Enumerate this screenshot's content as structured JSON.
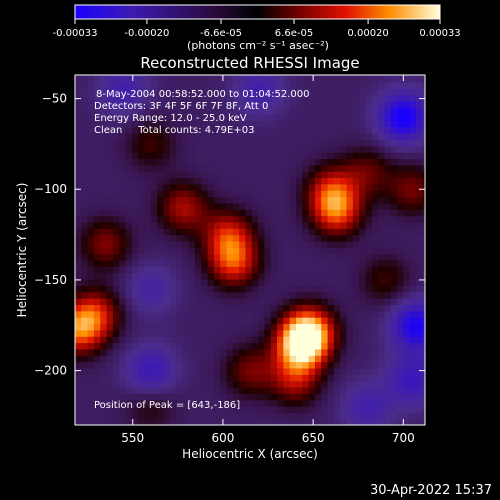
{
  "chart_data": {
    "type": "heatmap",
    "title": "Reconstructed RHESSI Image",
    "xlabel": "Heliocentric X (arcsec)",
    "ylabel": "Heliocentric Y (arcsec)",
    "xlim": [
      518,
      712
    ],
    "ylim": [
      -230,
      -37
    ],
    "x_ticks": [
      550,
      600,
      650,
      700
    ],
    "y_ticks": [
      -200,
      -150,
      -100,
      -50
    ],
    "colorbar": {
      "ticks": [
        "-0.00033",
        "-0.00020",
        "-6.6e-05",
        "6.6e-05",
        "0.00020",
        "0.00033"
      ],
      "tick_values": [
        -0.00033,
        -0.0002,
        -6.6e-05,
        6.6e-05,
        0.0002,
        0.00033
      ],
      "min": -0.00033,
      "max": 0.00033,
      "unit_label": "(photons cm⁻² s⁻¹ asec⁻²)"
    },
    "annotations": {
      "time": "8-May-2004 00:58:52.000 to 01:04:52.000",
      "detectors": "Detectors: 3F 4F 5F 6F 7F 8F, Att 0",
      "energy": "Energy Range: 12.0 - 25.0 keV",
      "clean": "Clean     Total counts: 4.79E+03",
      "peak": "Position of Peak = [643,-186]"
    },
    "sources": [
      {
        "x": 643,
        "y": -186,
        "value": 0.00033
      },
      {
        "x": 648,
        "y": -178,
        "value": 0.0003
      },
      {
        "x": 520,
        "y": -177,
        "value": 0.00026
      },
      {
        "x": 606,
        "y": -140,
        "value": 0.00023
      },
      {
        "x": 603,
        "y": -125,
        "value": 0.0002
      },
      {
        "x": 663,
        "y": -112,
        "value": 0.00024
      },
      {
        "x": 660,
        "y": -100,
        "value": 0.00018
      },
      {
        "x": 578,
        "y": -110,
        "value": 0.00018
      },
      {
        "x": 535,
        "y": -130,
        "value": 0.00015
      },
      {
        "x": 530,
        "y": -168,
        "value": 0.00018
      },
      {
        "x": 705,
        "y": -100,
        "value": 0.00014
      },
      {
        "x": 680,
        "y": -90,
        "value": 0.00012
      },
      {
        "x": 615,
        "y": -200,
        "value": 0.00014
      },
      {
        "x": 690,
        "y": -150,
        "value": 0.0001
      },
      {
        "x": 560,
        "y": -75,
        "value": 0.0001
      },
      {
        "x": 560,
        "y": -220,
        "value": 8e-05
      },
      {
        "x": 640,
        "y": -205,
        "value": 0.00017
      },
      {
        "x": 700,
        "y": -60,
        "value": -0.00026
      },
      {
        "x": 707,
        "y": -175,
        "value": -0.00024
      },
      {
        "x": 705,
        "y": -205,
        "value": -0.00016
      },
      {
        "x": 560,
        "y": -200,
        "value": -0.00016
      },
      {
        "x": 545,
        "y": -45,
        "value": -0.00012
      },
      {
        "x": 620,
        "y": -45,
        "value": -0.00012
      },
      {
        "x": 560,
        "y": -155,
        "value": -0.0001
      },
      {
        "x": 680,
        "y": -220,
        "value": -0.00012
      }
    ],
    "grid": false,
    "legend": "top (colorbar)"
  },
  "footer": {
    "timestamp": "30-Apr-2022 15:37"
  },
  "colors": {
    "background": "#000000",
    "text": "#ffffff"
  }
}
